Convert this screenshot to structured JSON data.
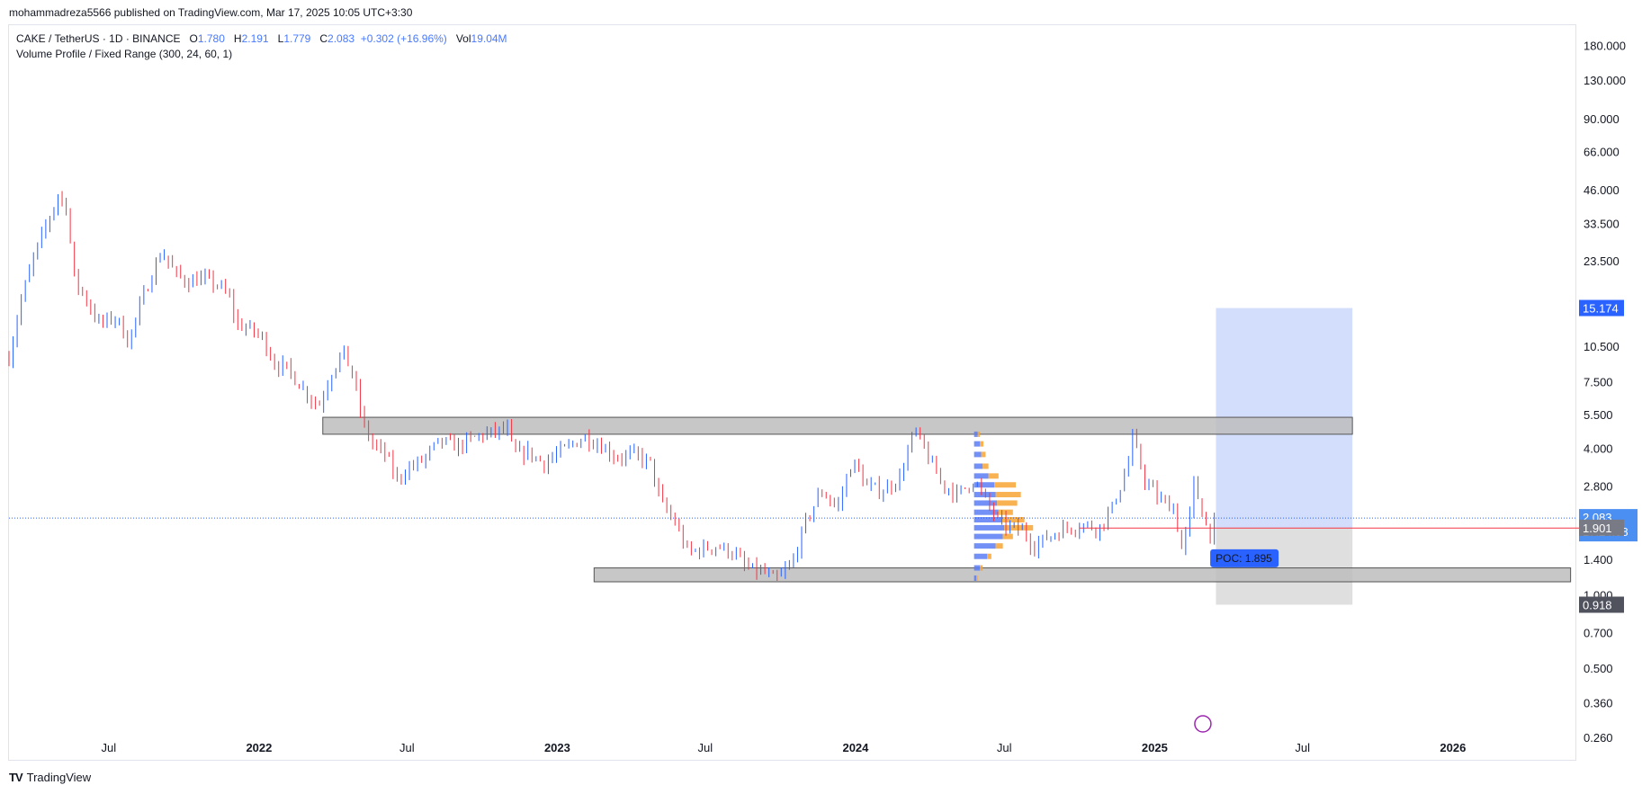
{
  "header": {
    "publish_line": "mohammadreza5566 published on TradingView.com, Mar 17, 2025 10:05 UTC+3:30"
  },
  "legend": {
    "symbol": "CAKE / TetherUS · 1D · BINANCE",
    "o_label": "O",
    "o": "1.780",
    "h_label": "H",
    "h": "2.191",
    "l_label": "L",
    "l": "1.779",
    "c_label": "C",
    "c": "2.083",
    "change": "+0.302 (+16.96%)",
    "vol_label": "Vol",
    "vol": "19.04M",
    "indicator": "Volume Profile / Fixed Range (300, 24, 60, 1)"
  },
  "footer": {
    "brand": "TradingView"
  },
  "colors": {
    "up": "#2962ff",
    "down": "#f23645",
    "zone": "#bdbdbd",
    "target": "#bfd0fb",
    "stop": "#d9d9d9",
    "profile_up": "#5b7cf4",
    "profile_down": "#f8a534"
  },
  "chart_data": {
    "type": "candlestick",
    "title": "CAKE / TetherUS · 1D · BINANCE",
    "y_scale": "log",
    "ylim": [
      0.21,
      220
    ],
    "xlim": [
      "2021-03-01",
      "2026-06-01"
    ],
    "y_ticks": [
      "180.000",
      "130.000",
      "90.000",
      "66.000",
      "46.000",
      "33.500",
      "23.500",
      "10.500",
      "7.500",
      "5.500",
      "4.000",
      "2.800",
      "1.400",
      "1.000",
      "0.700",
      "0.500",
      "0.360",
      "0.260"
    ],
    "y_tick_values": [
      180,
      130,
      90,
      66,
      46,
      33.5,
      23.5,
      10.5,
      7.5,
      5.5,
      4.0,
      2.8,
      1.4,
      1.0,
      0.7,
      0.5,
      0.36,
      0.26
    ],
    "x_ticks": [
      {
        "date": "2021-07-01",
        "label": "Jul"
      },
      {
        "date": "2022-01-01",
        "label": "2022"
      },
      {
        "date": "2022-07-01",
        "label": "Jul"
      },
      {
        "date": "2023-01-01",
        "label": "2023"
      },
      {
        "date": "2023-07-01",
        "label": "Jul"
      },
      {
        "date": "2024-01-01",
        "label": "2024"
      },
      {
        "date": "2024-07-01",
        "label": "Jul"
      },
      {
        "date": "2025-01-01",
        "label": "2025"
      },
      {
        "date": "2025-07-01",
        "label": "Jul"
      },
      {
        "date": "2026-01-01",
        "label": "2026"
      }
    ],
    "price_path": [
      [
        "2021-03-01",
        9.5
      ],
      [
        "2021-03-15",
        16
      ],
      [
        "2021-04-01",
        25
      ],
      [
        "2021-04-20",
        36
      ],
      [
        "2021-04-30",
        44
      ],
      [
        "2021-05-10",
        40
      ],
      [
        "2021-05-20",
        20
      ],
      [
        "2021-06-01",
        17
      ],
      [
        "2021-06-20",
        13
      ],
      [
        "2021-07-10",
        14
      ],
      [
        "2021-07-25",
        11
      ],
      [
        "2021-08-10",
        16
      ],
      [
        "2021-08-25",
        22
      ],
      [
        "2021-09-05",
        26
      ],
      [
        "2021-09-20",
        21
      ],
      [
        "2021-10-05",
        19.5
      ],
      [
        "2021-10-25",
        20
      ],
      [
        "2021-11-10",
        19
      ],
      [
        "2021-11-25",
        17
      ],
      [
        "2021-12-05",
        13
      ],
      [
        "2021-12-20",
        12.5
      ],
      [
        "2022-01-05",
        11.5
      ],
      [
        "2022-01-20",
        9
      ],
      [
        "2022-02-05",
        8.5
      ],
      [
        "2022-02-25",
        7
      ],
      [
        "2022-03-15",
        6
      ],
      [
        "2022-04-01",
        8.5
      ],
      [
        "2022-04-15",
        10
      ],
      [
        "2022-04-28",
        7.5
      ],
      [
        "2022-05-09",
        5
      ],
      [
        "2022-05-20",
        4.2
      ],
      [
        "2022-06-05",
        3.8
      ],
      [
        "2022-06-18",
        3.0
      ],
      [
        "2022-07-01",
        3.3
      ],
      [
        "2022-07-20",
        3.6
      ],
      [
        "2022-08-10",
        4.3
      ],
      [
        "2022-09-01",
        4.1
      ],
      [
        "2022-09-25",
        4.5
      ],
      [
        "2022-10-15",
        4.7
      ],
      [
        "2022-11-01",
        4.8
      ],
      [
        "2022-11-09",
        3.8
      ],
      [
        "2022-11-25",
        3.9
      ],
      [
        "2022-12-15",
        3.5
      ],
      [
        "2023-01-05",
        3.9
      ],
      [
        "2023-01-20",
        4.2
      ],
      [
        "2023-02-05",
        4.5
      ],
      [
        "2023-02-25",
        4.1
      ],
      [
        "2023-03-15",
        3.7
      ],
      [
        "2023-04-05",
        3.8
      ],
      [
        "2023-04-25",
        3.5
      ],
      [
        "2023-05-08",
        2.4
      ],
      [
        "2023-05-25",
        2.0
      ],
      [
        "2023-06-10",
        1.5
      ],
      [
        "2023-06-25",
        1.55
      ],
      [
        "2023-07-15",
        1.6
      ],
      [
        "2023-08-05",
        1.5
      ],
      [
        "2023-08-20",
        1.3
      ],
      [
        "2023-09-10",
        1.25
      ],
      [
        "2023-09-25",
        1.15
      ],
      [
        "2023-10-15",
        1.35
      ],
      [
        "2023-11-01",
        2.0
      ],
      [
        "2023-11-20",
        2.7
      ],
      [
        "2023-12-10",
        2.3
      ],
      [
        "2023-12-28",
        3.6
      ],
      [
        "2024-01-15",
        2.8
      ],
      [
        "2024-02-05",
        2.7
      ],
      [
        "2024-02-25",
        3.1
      ],
      [
        "2024-03-13",
        4.8
      ],
      [
        "2024-03-28",
        3.8
      ],
      [
        "2024-04-15",
        2.9
      ],
      [
        "2024-05-05",
        2.6
      ],
      [
        "2024-05-25",
        3.0
      ],
      [
        "2024-06-10",
        2.4
      ],
      [
        "2024-06-25",
        2.0
      ],
      [
        "2024-07-10",
        1.9
      ],
      [
        "2024-07-25",
        1.85
      ],
      [
        "2024-08-05",
        1.6
      ],
      [
        "2024-08-25",
        1.75
      ],
      [
        "2024-09-15",
        1.9
      ],
      [
        "2024-10-05",
        1.95
      ],
      [
        "2024-10-25",
        1.9
      ],
      [
        "2024-11-10",
        2.3
      ],
      [
        "2024-11-28",
        3.3
      ],
      [
        "2024-12-05",
        4.4
      ],
      [
        "2024-12-20",
        3.0
      ],
      [
        "2025-01-05",
        2.5
      ],
      [
        "2025-01-25",
        2.3
      ],
      [
        "2025-02-03",
        1.55
      ],
      [
        "2025-02-12",
        2.0
      ],
      [
        "2025-02-18",
        2.9
      ],
      [
        "2025-02-25",
        2.4
      ],
      [
        "2025-03-05",
        1.95
      ],
      [
        "2025-03-12",
        1.78
      ],
      [
        "2025-03-17",
        2.08
      ]
    ],
    "zones": [
      {
        "from": "2022-03-20",
        "to": "2025-08-31",
        "low": 4.6,
        "high": 5.4
      },
      {
        "from": "2023-02-15",
        "to": "2026-05-25",
        "low": 1.14,
        "high": 1.3
      }
    ],
    "position": {
      "from": "2025-03-17",
      "to": "2025-08-31",
      "entry": 1.901,
      "target": 15.174,
      "stop": 0.918
    },
    "last_price_line": 2.083,
    "poc_line": 1.895,
    "labels": {
      "target": "15.174",
      "last": "2.083",
      "countdown": "17:24:08",
      "entry": "1.901",
      "stop": "0.918",
      "poc": "POC: 1.895"
    },
    "volume_profile": {
      "date": "2024-05-25",
      "rows": [
        {
          "price": 4.6,
          "up": 5,
          "down": 3
        },
        {
          "price": 4.2,
          "up": 8,
          "down": 5
        },
        {
          "price": 3.8,
          "up": 10,
          "down": 6
        },
        {
          "price": 3.4,
          "up": 12,
          "down": 8
        },
        {
          "price": 3.1,
          "up": 20,
          "down": 14
        },
        {
          "price": 2.85,
          "up": 28,
          "down": 30
        },
        {
          "price": 2.6,
          "up": 30,
          "down": 35
        },
        {
          "price": 2.4,
          "up": 32,
          "down": 28
        },
        {
          "price": 2.2,
          "up": 34,
          "down": 20
        },
        {
          "price": 2.05,
          "up": 38,
          "down": 32
        },
        {
          "price": 1.9,
          "up": 42,
          "down": 40
        },
        {
          "price": 1.75,
          "up": 40,
          "down": 14
        },
        {
          "price": 1.6,
          "up": 30,
          "down": 10
        },
        {
          "price": 1.45,
          "up": 18,
          "down": 6
        },
        {
          "price": 1.3,
          "up": 8,
          "down": 4
        },
        {
          "price": 1.18,
          "up": 3,
          "down": 2
        }
      ]
    }
  }
}
